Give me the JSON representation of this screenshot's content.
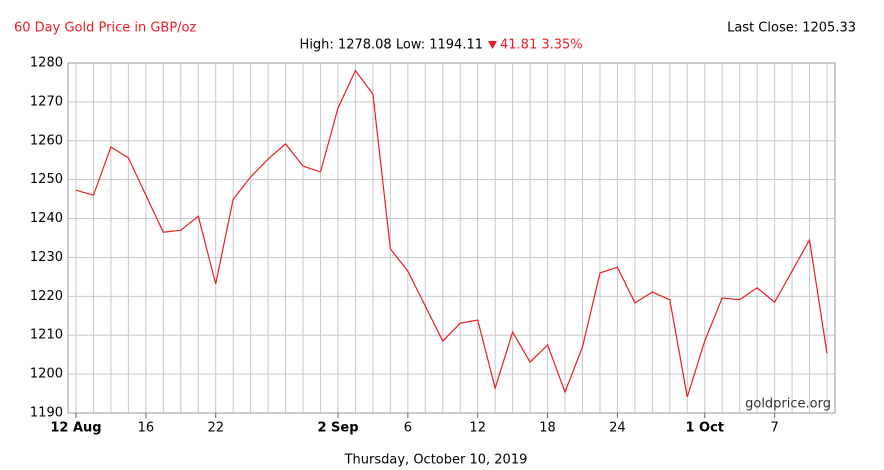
{
  "chart_data": {
    "type": "line",
    "title": "60 Day Gold Price in GBP/oz",
    "last_close": "Last Close: 1205.33",
    "stats": "High: 1278.08 Low: 1194.11",
    "change": "41.81 3.35%",
    "watermark": "goldprice.org",
    "x_label": "Thursday, October 10, 2019",
    "categories": [
      "12 Aug",
      null,
      null,
      null,
      "16",
      null,
      null,
      null,
      "22",
      null,
      null,
      null,
      null,
      null,
      null,
      "2 Sep",
      null,
      null,
      null,
      "6",
      null,
      null,
      null,
      "12",
      null,
      null,
      null,
      "18",
      null,
      null,
      null,
      "24",
      null,
      null,
      null,
      null,
      "1 Oct",
      null,
      null,
      null,
      "7",
      null,
      null,
      null
    ],
    "series": [
      {
        "name": "Gold Price",
        "color": "#ee1c25",
        "values": [
          1247.3,
          1246,
          1258.4,
          1255.6,
          1246,
          1236.5,
          1237,
          1240.6,
          1223.2,
          1245,
          1250.7,
          1255.3,
          1259.2,
          1253.5,
          1252,
          1268.4,
          1278.08,
          1272,
          1232.2,
          1226.5,
          1217.5,
          1208.5,
          1213.1,
          1213.9,
          1196.4,
          1210.8,
          1203.1,
          1207.5,
          1195.4,
          1207,
          1226,
          1227.5,
          1218.3,
          1221.1,
          1219.1,
          1194.11,
          1208.5,
          1219.6,
          1219.1,
          1222.2,
          1218.5,
          1226.5,
          1234.5,
          1205.33
        ]
      }
    ],
    "ylim": [
      1190,
      1280
    ],
    "yticks": [
      1190,
      1200,
      1210,
      1220,
      1230,
      1240,
      1250,
      1260,
      1270,
      1280
    ],
    "grid": true
  }
}
